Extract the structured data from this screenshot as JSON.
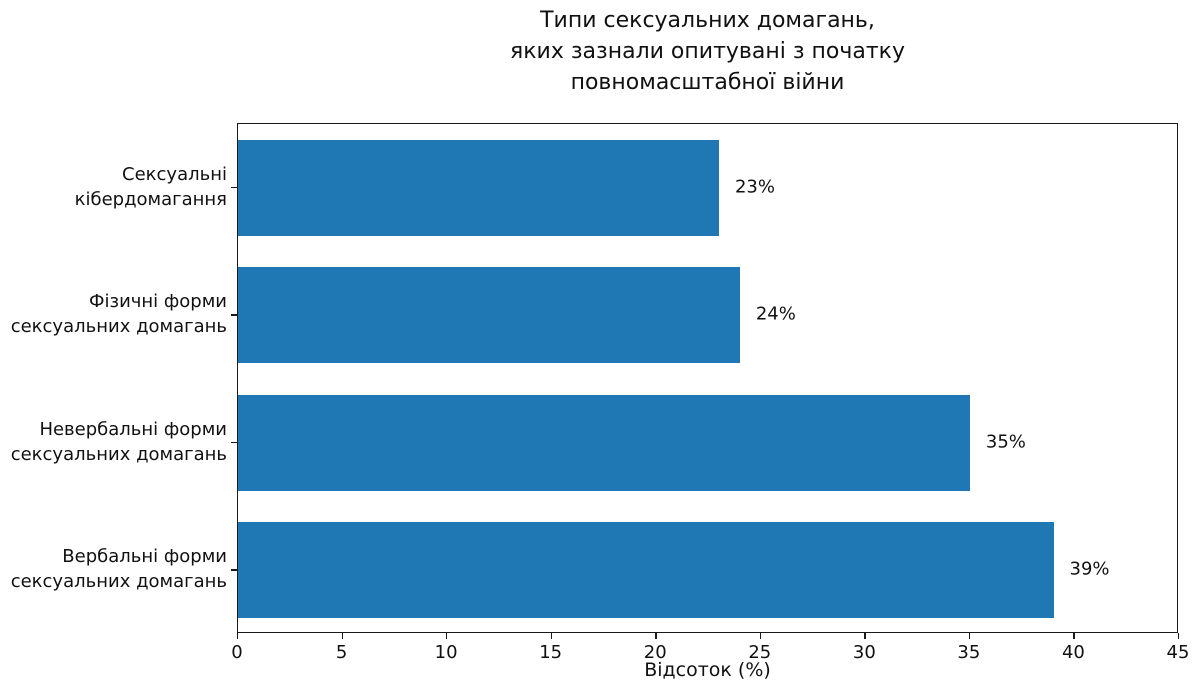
{
  "chart_data": {
    "type": "bar",
    "orientation": "horizontal",
    "title": "Типи сексуальних домагань,\nяких зазнали опитувані з початку\nповномасштабної війни",
    "categories": [
      "Сексуальні\nкібердомагання",
      "Фізичні форми\nсексуальних домагань",
      "Невербальні форми\nсексуальних домагань",
      "Вербальні форми\nсексуальних домагань"
    ],
    "values": [
      23,
      24,
      35,
      39
    ],
    "value_labels": [
      "23%",
      "24%",
      "35%",
      "39%"
    ],
    "xlabel": "Відсоток (%)",
    "xlim": [
      0,
      45
    ],
    "xticks": [
      0,
      5,
      10,
      15,
      20,
      25,
      30,
      35,
      40,
      45
    ],
    "bar_color": "#1f77b4",
    "grid": false,
    "frame": "full-box"
  }
}
